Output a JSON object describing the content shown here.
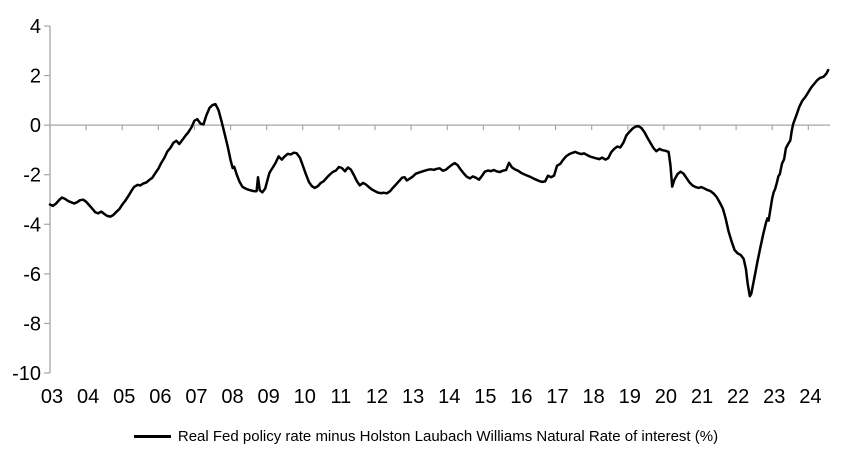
{
  "chart_data": {
    "type": "line",
    "title": "",
    "legend_label": "Real Fed policy rate minus Holston Laubach Williams Natural Rate of interest (%)",
    "legend_position": "bottom-center",
    "grid": "zero-gridline-only",
    "axis_color": "#a6a6a6",
    "line_color": "#000000",
    "label_color": "#000000",
    "ylim": [
      -10,
      4
    ],
    "xlim": [
      2003,
      2024.6
    ],
    "y_ticks": [
      4,
      2,
      0,
      -2,
      -4,
      -6,
      -8,
      -10
    ],
    "y_tick_labels": [
      "4",
      "2",
      "0",
      "-2",
      "-4",
      "-6",
      "-8",
      "-10"
    ],
    "x_tick_years": [
      2003,
      2004,
      2005,
      2006,
      2007,
      2008,
      2009,
      2010,
      2011,
      2012,
      2013,
      2014,
      2015,
      2016,
      2017,
      2018,
      2019,
      2020,
      2021,
      2022,
      2023,
      2024
    ],
    "x_tick_labels": [
      "03",
      "04",
      "05",
      "06",
      "07",
      "08",
      "09",
      "10",
      "11",
      "12",
      "13",
      "14",
      "15",
      "16",
      "17",
      "18",
      "19",
      "20",
      "21",
      "22",
      "23",
      "24"
    ],
    "series": [
      {
        "name": "Real Fed policy rate minus Holston Laubach Williams Natural Rate of interest (%)",
        "points": [
          [
            2003.0,
            -3.2
          ],
          [
            2003.08,
            -3.26
          ],
          [
            2003.17,
            -3.16
          ],
          [
            2003.25,
            -3.03
          ],
          [
            2003.33,
            -2.92
          ],
          [
            2003.42,
            -2.98
          ],
          [
            2003.5,
            -3.06
          ],
          [
            2003.58,
            -3.11
          ],
          [
            2003.67,
            -3.16
          ],
          [
            2003.75,
            -3.11
          ],
          [
            2003.83,
            -3.03
          ],
          [
            2003.92,
            -3.01
          ],
          [
            2004.0,
            -3.09
          ],
          [
            2004.08,
            -3.22
          ],
          [
            2004.17,
            -3.37
          ],
          [
            2004.25,
            -3.51
          ],
          [
            2004.33,
            -3.56
          ],
          [
            2004.42,
            -3.49
          ],
          [
            2004.5,
            -3.58
          ],
          [
            2004.58,
            -3.66
          ],
          [
            2004.67,
            -3.69
          ],
          [
            2004.75,
            -3.63
          ],
          [
            2004.83,
            -3.51
          ],
          [
            2004.92,
            -3.39
          ],
          [
            2005.0,
            -3.21
          ],
          [
            2005.08,
            -3.06
          ],
          [
            2005.17,
            -2.86
          ],
          [
            2005.25,
            -2.66
          ],
          [
            2005.33,
            -2.49
          ],
          [
            2005.42,
            -2.41
          ],
          [
            2005.5,
            -2.43
          ],
          [
            2005.58,
            -2.36
          ],
          [
            2005.67,
            -2.31
          ],
          [
            2005.75,
            -2.21
          ],
          [
            2005.83,
            -2.13
          ],
          [
            2005.92,
            -1.93
          ],
          [
            2006.0,
            -1.76
          ],
          [
            2006.08,
            -1.53
          ],
          [
            2006.17,
            -1.31
          ],
          [
            2006.25,
            -1.06
          ],
          [
            2006.33,
            -0.93
          ],
          [
            2006.42,
            -0.71
          ],
          [
            2006.5,
            -0.63
          ],
          [
            2006.58,
            -0.76
          ],
          [
            2006.67,
            -0.59
          ],
          [
            2006.75,
            -0.43
          ],
          [
            2006.83,
            -0.29
          ],
          [
            2006.92,
            -0.08
          ],
          [
            2007.0,
            0.18
          ],
          [
            2007.08,
            0.24
          ],
          [
            2007.17,
            0.06
          ],
          [
            2007.25,
            0.03
          ],
          [
            2007.33,
            0.4
          ],
          [
            2007.42,
            0.7
          ],
          [
            2007.5,
            0.81
          ],
          [
            2007.58,
            0.85
          ],
          [
            2007.67,
            0.6
          ],
          [
            2007.75,
            0.16
          ],
          [
            2007.83,
            -0.31
          ],
          [
            2007.92,
            -0.86
          ],
          [
            2008.0,
            -1.42
          ],
          [
            2008.06,
            -1.73
          ],
          [
            2008.1,
            -1.68
          ],
          [
            2008.17,
            -1.99
          ],
          [
            2008.25,
            -2.29
          ],
          [
            2008.33,
            -2.49
          ],
          [
            2008.42,
            -2.56
          ],
          [
            2008.5,
            -2.61
          ],
          [
            2008.58,
            -2.64
          ],
          [
            2008.67,
            -2.67
          ],
          [
            2008.72,
            -2.66
          ],
          [
            2008.76,
            -2.1
          ],
          [
            2008.81,
            -2.63
          ],
          [
            2008.88,
            -2.71
          ],
          [
            2008.96,
            -2.56
          ],
          [
            2009.04,
            -2.12
          ],
          [
            2009.08,
            -1.91
          ],
          [
            2009.17,
            -1.71
          ],
          [
            2009.25,
            -1.51
          ],
          [
            2009.33,
            -1.26
          ],
          [
            2009.42,
            -1.39
          ],
          [
            2009.5,
            -1.26
          ],
          [
            2009.58,
            -1.16
          ],
          [
            2009.67,
            -1.18
          ],
          [
            2009.75,
            -1.11
          ],
          [
            2009.83,
            -1.13
          ],
          [
            2009.92,
            -1.31
          ],
          [
            2010.0,
            -1.63
          ],
          [
            2010.08,
            -1.96
          ],
          [
            2010.17,
            -2.29
          ],
          [
            2010.25,
            -2.46
          ],
          [
            2010.33,
            -2.53
          ],
          [
            2010.42,
            -2.46
          ],
          [
            2010.5,
            -2.33
          ],
          [
            2010.58,
            -2.26
          ],
          [
            2010.67,
            -2.11
          ],
          [
            2010.75,
            -1.99
          ],
          [
            2010.83,
            -1.89
          ],
          [
            2010.92,
            -1.83
          ],
          [
            2011.0,
            -1.69
          ],
          [
            2011.08,
            -1.73
          ],
          [
            2011.17,
            -1.86
          ],
          [
            2011.25,
            -1.71
          ],
          [
            2011.33,
            -1.79
          ],
          [
            2011.42,
            -2.03
          ],
          [
            2011.5,
            -2.26
          ],
          [
            2011.58,
            -2.43
          ],
          [
            2011.67,
            -2.33
          ],
          [
            2011.75,
            -2.4
          ],
          [
            2011.83,
            -2.5
          ],
          [
            2011.92,
            -2.6
          ],
          [
            2012.0,
            -2.66
          ],
          [
            2012.08,
            -2.72
          ],
          [
            2012.17,
            -2.74
          ],
          [
            2012.25,
            -2.73
          ],
          [
            2012.33,
            -2.75
          ],
          [
            2012.42,
            -2.66
          ],
          [
            2012.5,
            -2.52
          ],
          [
            2012.58,
            -2.4
          ],
          [
            2012.67,
            -2.25
          ],
          [
            2012.75,
            -2.12
          ],
          [
            2012.82,
            -2.1
          ],
          [
            2012.88,
            -2.23
          ],
          [
            2012.96,
            -2.16
          ],
          [
            2013.04,
            -2.08
          ],
          [
            2013.13,
            -1.96
          ],
          [
            2013.21,
            -1.92
          ],
          [
            2013.29,
            -1.88
          ],
          [
            2013.38,
            -1.84
          ],
          [
            2013.46,
            -1.8
          ],
          [
            2013.54,
            -1.78
          ],
          [
            2013.63,
            -1.8
          ],
          [
            2013.71,
            -1.76
          ],
          [
            2013.79,
            -1.74
          ],
          [
            2013.88,
            -1.84
          ],
          [
            2013.96,
            -1.8
          ],
          [
            2014.04,
            -1.7
          ],
          [
            2014.13,
            -1.6
          ],
          [
            2014.21,
            -1.53
          ],
          [
            2014.29,
            -1.62
          ],
          [
            2014.38,
            -1.8
          ],
          [
            2014.46,
            -1.95
          ],
          [
            2014.54,
            -2.08
          ],
          [
            2014.63,
            -2.15
          ],
          [
            2014.71,
            -2.07
          ],
          [
            2014.79,
            -2.12
          ],
          [
            2014.88,
            -2.2
          ],
          [
            2014.96,
            -2.05
          ],
          [
            2015.04,
            -1.88
          ],
          [
            2015.13,
            -1.83
          ],
          [
            2015.21,
            -1.86
          ],
          [
            2015.29,
            -1.81
          ],
          [
            2015.38,
            -1.87
          ],
          [
            2015.46,
            -1.89
          ],
          [
            2015.54,
            -1.84
          ],
          [
            2015.63,
            -1.81
          ],
          [
            2015.71,
            -1.52
          ],
          [
            2015.79,
            -1.7
          ],
          [
            2015.88,
            -1.79
          ],
          [
            2015.96,
            -1.84
          ],
          [
            2016.04,
            -1.92
          ],
          [
            2016.13,
            -1.98
          ],
          [
            2016.21,
            -2.03
          ],
          [
            2016.29,
            -2.08
          ],
          [
            2016.38,
            -2.15
          ],
          [
            2016.46,
            -2.2
          ],
          [
            2016.54,
            -2.25
          ],
          [
            2016.63,
            -2.29
          ],
          [
            2016.71,
            -2.27
          ],
          [
            2016.79,
            -2.04
          ],
          [
            2016.88,
            -2.1
          ],
          [
            2016.96,
            -2.03
          ],
          [
            2017.04,
            -1.64
          ],
          [
            2017.13,
            -1.56
          ],
          [
            2017.21,
            -1.4
          ],
          [
            2017.29,
            -1.26
          ],
          [
            2017.38,
            -1.17
          ],
          [
            2017.46,
            -1.12
          ],
          [
            2017.54,
            -1.08
          ],
          [
            2017.63,
            -1.13
          ],
          [
            2017.71,
            -1.17
          ],
          [
            2017.79,
            -1.14
          ],
          [
            2017.88,
            -1.21
          ],
          [
            2017.96,
            -1.27
          ],
          [
            2018.04,
            -1.3
          ],
          [
            2018.13,
            -1.34
          ],
          [
            2018.21,
            -1.37
          ],
          [
            2018.29,
            -1.31
          ],
          [
            2018.38,
            -1.39
          ],
          [
            2018.46,
            -1.33
          ],
          [
            2018.54,
            -1.09
          ],
          [
            2018.63,
            -0.95
          ],
          [
            2018.71,
            -0.86
          ],
          [
            2018.79,
            -0.9
          ],
          [
            2018.88,
            -0.71
          ],
          [
            2018.96,
            -0.42
          ],
          [
            2019.04,
            -0.28
          ],
          [
            2019.13,
            -0.14
          ],
          [
            2019.21,
            -0.06
          ],
          [
            2019.29,
            -0.04
          ],
          [
            2019.38,
            -0.12
          ],
          [
            2019.46,
            -0.28
          ],
          [
            2019.54,
            -0.5
          ],
          [
            2019.63,
            -0.72
          ],
          [
            2019.71,
            -0.92
          ],
          [
            2019.79,
            -1.05
          ],
          [
            2019.88,
            -0.96
          ],
          [
            2019.96,
            -1.01
          ],
          [
            2020.04,
            -1.03
          ],
          [
            2020.13,
            -1.08
          ],
          [
            2020.18,
            -1.6
          ],
          [
            2020.23,
            -2.48
          ],
          [
            2020.29,
            -2.2
          ],
          [
            2020.38,
            -1.97
          ],
          [
            2020.46,
            -1.88
          ],
          [
            2020.54,
            -1.95
          ],
          [
            2020.63,
            -2.14
          ],
          [
            2020.71,
            -2.31
          ],
          [
            2020.79,
            -2.43
          ],
          [
            2020.88,
            -2.5
          ],
          [
            2020.96,
            -2.53
          ],
          [
            2021.04,
            -2.5
          ],
          [
            2021.13,
            -2.56
          ],
          [
            2021.21,
            -2.62
          ],
          [
            2021.29,
            -2.66
          ],
          [
            2021.38,
            -2.76
          ],
          [
            2021.46,
            -2.9
          ],
          [
            2021.54,
            -3.1
          ],
          [
            2021.63,
            -3.36
          ],
          [
            2021.71,
            -3.76
          ],
          [
            2021.79,
            -4.28
          ],
          [
            2021.88,
            -4.72
          ],
          [
            2021.96,
            -5.05
          ],
          [
            2022.04,
            -5.17
          ],
          [
            2022.13,
            -5.24
          ],
          [
            2022.21,
            -5.4
          ],
          [
            2022.27,
            -5.8
          ],
          [
            2022.32,
            -6.4
          ],
          [
            2022.38,
            -6.9
          ],
          [
            2022.42,
            -6.8
          ],
          [
            2022.47,
            -6.42
          ],
          [
            2022.52,
            -6.05
          ],
          [
            2022.58,
            -5.58
          ],
          [
            2022.67,
            -4.95
          ],
          [
            2022.75,
            -4.4
          ],
          [
            2022.83,
            -3.92
          ],
          [
            2022.87,
            -3.76
          ],
          [
            2022.9,
            -3.85
          ],
          [
            2022.96,
            -3.3
          ],
          [
            2023.0,
            -2.95
          ],
          [
            2023.04,
            -2.7
          ],
          [
            2023.08,
            -2.58
          ],
          [
            2023.13,
            -2.32
          ],
          [
            2023.17,
            -2.06
          ],
          [
            2023.21,
            -1.98
          ],
          [
            2023.27,
            -1.55
          ],
          [
            2023.33,
            -1.38
          ],
          [
            2023.38,
            -0.93
          ],
          [
            2023.44,
            -0.76
          ],
          [
            2023.5,
            -0.62
          ],
          [
            2023.54,
            -0.24
          ],
          [
            2023.58,
            0.05
          ],
          [
            2023.67,
            0.4
          ],
          [
            2023.75,
            0.74
          ],
          [
            2023.83,
            0.98
          ],
          [
            2023.92,
            1.14
          ],
          [
            2024.0,
            1.33
          ],
          [
            2024.08,
            1.52
          ],
          [
            2024.17,
            1.68
          ],
          [
            2024.25,
            1.82
          ],
          [
            2024.33,
            1.91
          ],
          [
            2024.42,
            1.95
          ],
          [
            2024.5,
            2.08
          ],
          [
            2024.55,
            2.22
          ]
        ]
      }
    ]
  }
}
